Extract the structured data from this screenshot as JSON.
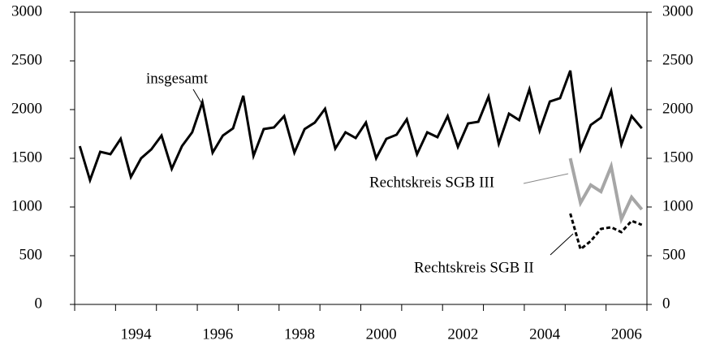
{
  "chart_data": {
    "type": "line",
    "x": [
      1993.125,
      1993.375,
      1993.625,
      1993.875,
      1994.125,
      1994.375,
      1994.625,
      1994.875,
      1995.125,
      1995.375,
      1995.625,
      1995.875,
      1996.125,
      1996.375,
      1996.625,
      1996.875,
      1997.125,
      1997.375,
      1997.625,
      1997.875,
      1998.125,
      1998.375,
      1998.625,
      1998.875,
      1999.125,
      1999.375,
      1999.625,
      1999.875,
      2000.125,
      2000.375,
      2000.625,
      2000.875,
      2001.125,
      2001.375,
      2001.625,
      2001.875,
      2002.125,
      2002.375,
      2002.625,
      2002.875,
      2003.125,
      2003.375,
      2003.625,
      2003.875,
      2004.125,
      2004.375,
      2004.625,
      2004.875,
      2005.125,
      2005.375,
      2005.625,
      2005.875,
      2006.125,
      2006.375,
      2006.625,
      2006.875
    ],
    "series": [
      {
        "name": "insgesamt",
        "color": "#000000",
        "dash": false,
        "values": [
          1625,
          1275,
          1567,
          1542,
          1700,
          1308,
          1500,
          1592,
          1733,
          1392,
          1625,
          1767,
          2075,
          1558,
          1733,
          1808,
          2142,
          1525,
          1800,
          1817,
          1933,
          1558,
          1800,
          1867,
          2008,
          1600,
          1767,
          1708,
          1867,
          1500,
          1700,
          1742,
          1900,
          1542,
          1767,
          1717,
          1933,
          1617,
          1858,
          1875,
          2133,
          1650,
          1958,
          1892,
          2208,
          1783,
          2083,
          2117,
          2400,
          1592,
          1842,
          1917,
          2192,
          1642,
          1933,
          1808
        ]
      },
      {
        "name": "Rechtskreis SGB III",
        "color": "#a6a6a6",
        "dash": false,
        "values": [
          null,
          null,
          null,
          null,
          null,
          null,
          null,
          null,
          null,
          null,
          null,
          null,
          null,
          null,
          null,
          null,
          null,
          null,
          null,
          null,
          null,
          null,
          null,
          null,
          null,
          null,
          null,
          null,
          null,
          null,
          null,
          null,
          null,
          null,
          null,
          null,
          null,
          null,
          null,
          null,
          null,
          null,
          null,
          null,
          null,
          null,
          null,
          null,
          1500,
          1042,
          1225,
          1158,
          1417,
          875,
          1100,
          975
        ]
      },
      {
        "name": "Rechtskreis SGB II",
        "color": "#000000",
        "dash": true,
        "values": [
          null,
          null,
          null,
          null,
          null,
          null,
          null,
          null,
          null,
          null,
          null,
          null,
          null,
          null,
          null,
          null,
          null,
          null,
          null,
          null,
          null,
          null,
          null,
          null,
          null,
          null,
          null,
          null,
          null,
          null,
          null,
          null,
          null,
          null,
          null,
          null,
          null,
          null,
          null,
          null,
          null,
          null,
          null,
          null,
          null,
          null,
          null,
          null,
          933,
          567,
          650,
          775,
          792,
          742,
          858,
          817
        ]
      }
    ],
    "xlim": [
      1993,
      2007
    ],
    "xticks": [
      1994,
      1996,
      1998,
      2000,
      2002,
      2004,
      2006
    ],
    "xminor_ticks": [
      1993,
      1994,
      1995,
      1996,
      1997,
      1998,
      1999,
      2000,
      2001,
      2002,
      2003,
      2004,
      2005,
      2006,
      2007
    ],
    "ylim": [
      0,
      3000
    ],
    "yticks": [
      0,
      500,
      1000,
      1500,
      2000,
      2500,
      3000
    ],
    "y2lim": [
      0,
      3000
    ],
    "y2ticks": [
      0,
      500,
      1000,
      1500,
      2000,
      2500,
      3000
    ],
    "grid": false
  }
}
